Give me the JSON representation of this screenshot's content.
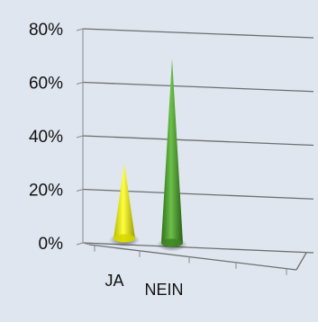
{
  "chart_data": {
    "type": "bar",
    "style": "3d-cone",
    "categories": [
      "JA",
      "NEIN"
    ],
    "values": [
      28,
      69
    ],
    "value_unit": "percent",
    "y_ticks": [
      "0%",
      "20%",
      "40%",
      "60%",
      "80%"
    ],
    "ylim": [
      0,
      80
    ],
    "grid": true,
    "legend": "none",
    "title": "",
    "xlabel": "",
    "ylabel": "",
    "colors": {
      "background": "#dfe6ef",
      "grid": "#6e6e6e",
      "series": [
        "#f2f200",
        "#4a9a2a"
      ]
    }
  }
}
